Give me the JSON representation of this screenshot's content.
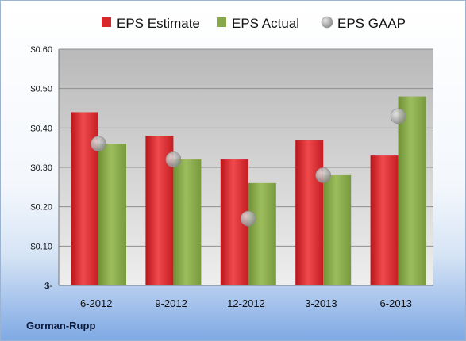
{
  "company": "Gorman-Rupp",
  "chart_data": {
    "type": "bar",
    "categories": [
      "6-2012",
      "9-2012",
      "12-2012",
      "3-2013",
      "6-2013"
    ],
    "series": [
      {
        "name": "EPS Estimate",
        "type": "bar",
        "color": "#d9262b",
        "values": [
          0.44,
          0.38,
          0.32,
          0.37,
          0.33
        ]
      },
      {
        "name": "EPS Actual",
        "type": "bar",
        "color": "#86a84a",
        "values": [
          0.36,
          0.32,
          0.26,
          0.28,
          0.48
        ]
      },
      {
        "name": "EPS GAAP",
        "type": "scatter",
        "color": "#a9a9a9",
        "values": [
          0.36,
          0.32,
          0.17,
          0.28,
          0.43
        ]
      }
    ],
    "y_ticks": [
      {
        "value": 0,
        "label": "$-"
      },
      {
        "value": 0.1,
        "label": "$0.10"
      },
      {
        "value": 0.2,
        "label": "$0.20"
      },
      {
        "value": 0.3,
        "label": "$0.30"
      },
      {
        "value": 0.4,
        "label": "$0.40"
      },
      {
        "value": 0.5,
        "label": "$0.50"
      },
      {
        "value": 0.6,
        "label": "$0.60"
      }
    ],
    "ylim": [
      0,
      0.6
    ],
    "grid": true,
    "legend_position": "top"
  }
}
